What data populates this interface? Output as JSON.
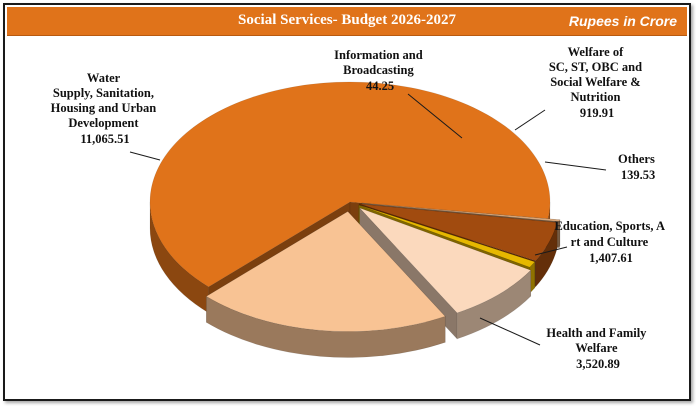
{
  "chart_data": {
    "type": "pie",
    "title": "Social Services- Budget 2026-2027",
    "unit_label": "Rupees in Crore",
    "slices": [
      {
        "label": "Water Supply, Sanitation, Housing and Urban Development",
        "value": 11065.51,
        "value_text": "11,065.51",
        "color": "#e0731a"
      },
      {
        "label": "Information and Broadcasting",
        "value": 44.25,
        "value_text": "44.25",
        "color": "#d9a77a"
      },
      {
        "label": "Welfare of SC, ST, OBC and Social Welfare & Nutrition",
        "value": 919.91,
        "value_text": "919.91",
        "color": "#a14b0f"
      },
      {
        "label": "Others",
        "value": 139.53,
        "value_text": "139.53",
        "color": "#e6b800"
      },
      {
        "label": "Education, Sports, Art and Culture",
        "value": 1407.61,
        "value_text": "1,407.61",
        "color": "#fbd9bd"
      },
      {
        "label": "Health and Family Welfare",
        "value": 3520.89,
        "value_text": "3,520.89",
        "color": "#f8c394"
      }
    ]
  }
}
